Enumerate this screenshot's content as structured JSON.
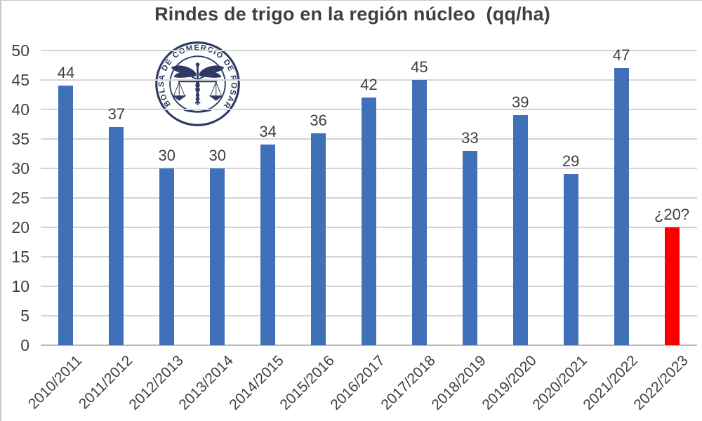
{
  "chart_data": {
    "type": "bar",
    "title": "Rindes de trigo en la región núcleo  (qq/ha)",
    "categories": [
      "2010/2011",
      "2011/2012",
      "2012/2013",
      "2013/2014",
      "2014/2015",
      "2015/2016",
      "2016/2017",
      "2017/2018",
      "2018/2019",
      "2019/2020",
      "2020/2021",
      "2021/2022",
      "2022/2023"
    ],
    "values": [
      44,
      37,
      30,
      30,
      34,
      36,
      42,
      45,
      33,
      39,
      29,
      47,
      20
    ],
    "labels": [
      "44",
      "37",
      "30",
      "30",
      "34",
      "36",
      "42",
      "45",
      "33",
      "39",
      "29",
      "47",
      "¿20?"
    ],
    "xlabel": "",
    "ylabel": "",
    "ylim": [
      0,
      50
    ],
    "ytick_step": 5,
    "grid": "horizontal",
    "legend": "none",
    "bar_color": "#4070B7",
    "highlight_color": "#F80000",
    "highlight_index": 12
  },
  "logo": {
    "text": "BOLSA DE COMERCIO DE ROSARIO",
    "color": "#2E3A64"
  },
  "colors": {
    "background": "#FFFFFF",
    "text": "#3F3F3F",
    "grid": "#D4D4D4",
    "axis": "#B9B9B9",
    "border": "#C9C9C9"
  }
}
